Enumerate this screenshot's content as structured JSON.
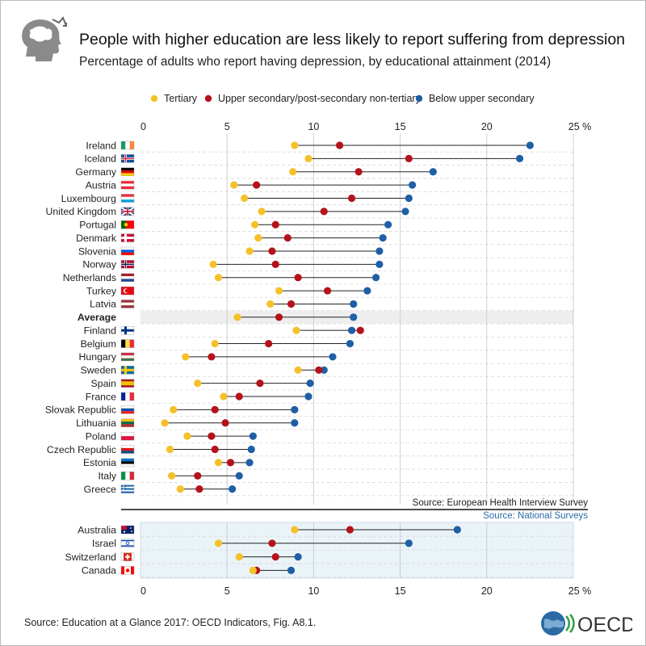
{
  "header": {
    "title": "People with higher education are less likely to report suffering from depression",
    "subtitle": "Percentage of adults who report having depression, by educational attainment (2014)"
  },
  "footer": {
    "source": "Source: Education at a Glance 2017: OECD Indicators, Fig. A8.1.",
    "logo_text": "OECD"
  },
  "colors": {
    "tertiary": "#f5c12a",
    "upper_secondary": "#b5121b",
    "below_upper_secondary": "#1f5fa6",
    "line": "#222222",
    "national_band": "#eaf3f8",
    "average_band": "#eeeeee"
  },
  "chart_data": {
    "type": "dot",
    "title": "Percentage of adults who report having depression, by educational attainment (2014)",
    "xlim": [
      0,
      25
    ],
    "xticks": [
      "0",
      "5",
      "10",
      "15",
      "20",
      "25 %"
    ],
    "legend": [
      "Tertiary",
      "Upper secondary/post-secondary non-tertiary",
      "Below upper secondary"
    ],
    "legend_position": "top",
    "group_european": {
      "source_label": "Source: European Health Interview Survey",
      "countries": [
        {
          "name": "Ireland",
          "tertiary": 8.9,
          "upper": 11.5,
          "below": 22.5
        },
        {
          "name": "Iceland",
          "tertiary": 9.7,
          "upper": 15.5,
          "below": 21.9
        },
        {
          "name": "Germany",
          "tertiary": 8.8,
          "upper": 12.6,
          "below": 16.9
        },
        {
          "name": "Austria",
          "tertiary": 5.4,
          "upper": 6.7,
          "below": 15.7
        },
        {
          "name": "Luxembourg",
          "tertiary": 6.0,
          "upper": 12.2,
          "below": 15.5
        },
        {
          "name": "United Kingdom",
          "tertiary": 7.0,
          "upper": 10.6,
          "below": 15.3
        },
        {
          "name": "Portugal",
          "tertiary": 6.6,
          "upper": 7.8,
          "below": 14.3
        },
        {
          "name": "Denmark",
          "tertiary": 6.8,
          "upper": 8.5,
          "below": 14.0
        },
        {
          "name": "Slovenia",
          "tertiary": 6.3,
          "upper": 7.6,
          "below": 13.8
        },
        {
          "name": "Norway",
          "tertiary": 4.2,
          "upper": 7.8,
          "below": 13.8
        },
        {
          "name": "Netherlands",
          "tertiary": 4.5,
          "upper": 9.1,
          "below": 13.6
        },
        {
          "name": "Turkey",
          "tertiary": 8.0,
          "upper": 10.8,
          "below": 13.1
        },
        {
          "name": "Latvia",
          "tertiary": 7.5,
          "upper": 8.7,
          "below": 12.3
        },
        {
          "name": "Average",
          "tertiary": 5.6,
          "upper": 8.0,
          "below": 12.3,
          "highlight": true
        },
        {
          "name": "Finland",
          "tertiary": 9.0,
          "upper": 12.7,
          "below": 12.2
        },
        {
          "name": "Belgium",
          "tertiary": 4.3,
          "upper": 7.4,
          "below": 12.1
        },
        {
          "name": "Hungary",
          "tertiary": 2.6,
          "upper": 4.1,
          "below": 11.1
        },
        {
          "name": "Sweden",
          "tertiary": 9.1,
          "upper": 10.3,
          "below": 10.6
        },
        {
          "name": "Spain",
          "tertiary": 3.3,
          "upper": 6.9,
          "below": 9.8
        },
        {
          "name": "France",
          "tertiary": 4.8,
          "upper": 5.7,
          "below": 9.7
        },
        {
          "name": "Slovak Republic",
          "tertiary": 1.9,
          "upper": 4.3,
          "below": 8.9
        },
        {
          "name": "Lithuania",
          "tertiary": 1.4,
          "upper": 4.9,
          "below": 8.9
        },
        {
          "name": "Poland",
          "tertiary": 2.7,
          "upper": 4.1,
          "below": 6.5
        },
        {
          "name": "Czech Republic",
          "tertiary": 1.7,
          "upper": 4.3,
          "below": 6.4
        },
        {
          "name": "Estonia",
          "tertiary": 4.5,
          "upper": 5.2,
          "below": 6.3
        },
        {
          "name": "Italy",
          "tertiary": 1.8,
          "upper": 3.3,
          "below": 5.7
        },
        {
          "name": "Greece",
          "tertiary": 2.3,
          "upper": 3.4,
          "below": 5.3
        }
      ]
    },
    "group_national": {
      "source_label": "Source: National Surveys",
      "countries": [
        {
          "name": "Australia",
          "tertiary": 8.9,
          "upper": 12.1,
          "below": 18.3
        },
        {
          "name": "Israel",
          "tertiary": 4.5,
          "upper": 7.6,
          "below": 15.5
        },
        {
          "name": "Switzerland",
          "tertiary": 5.7,
          "upper": 7.8,
          "below": 9.1
        },
        {
          "name": "Canada",
          "tertiary": 6.5,
          "upper": 6.7,
          "below": 8.7
        }
      ]
    }
  }
}
